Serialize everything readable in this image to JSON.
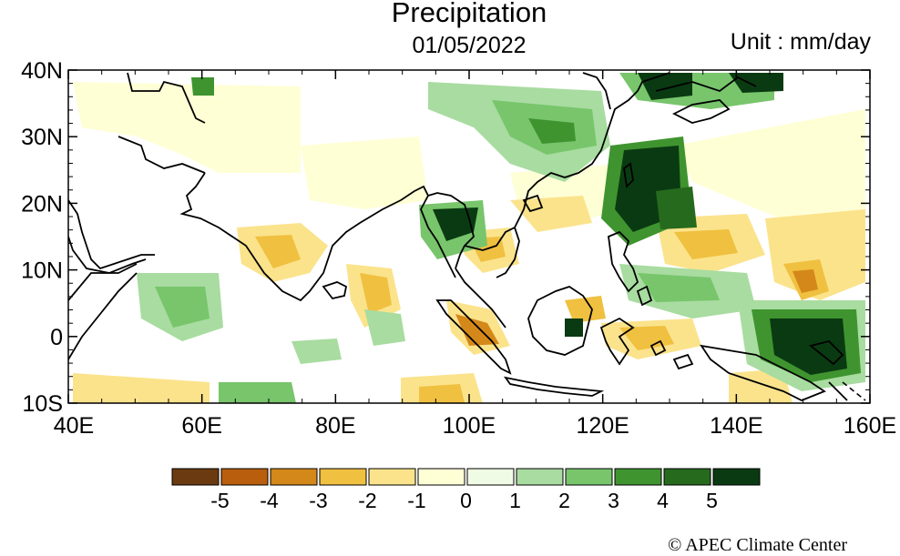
{
  "header": {
    "title": "Precipitation",
    "date": "01/05/2022",
    "unit": "Unit : mm/day"
  },
  "axes": {
    "y_ticks": [
      {
        "label": "40N",
        "lat": 40
      },
      {
        "label": "30N",
        "lat": 30
      },
      {
        "label": "20N",
        "lat": 20
      },
      {
        "label": "10N",
        "lat": 10
      },
      {
        "label": "0",
        "lat": 0
      },
      {
        "label": "10S",
        "lat": -10
      }
    ],
    "x_ticks": [
      {
        "label": "40E",
        "lon": 40
      },
      {
        "label": "60E",
        "lon": 60
      },
      {
        "label": "80E",
        "lon": 80
      },
      {
        "label": "100E",
        "lon": 100
      },
      {
        "label": "120E",
        "lon": 120
      },
      {
        "label": "140E",
        "lon": 140
      },
      {
        "label": "160E",
        "lon": 160
      }
    ]
  },
  "colorbar": {
    "colors": [
      "#6b3a10",
      "#b85e0c",
      "#d4881a",
      "#f0c040",
      "#fbe38c",
      "#ffffd6",
      "#effbe4",
      "#a8dca0",
      "#78c56c",
      "#3f942f",
      "#266a1e",
      "#0a3a12"
    ],
    "labels": [
      "-5",
      "-4",
      "-3",
      "-2",
      "-1",
      "0",
      "1",
      "2",
      "3",
      "4",
      "5"
    ]
  },
  "footer": {
    "copyright": "© APEC Climate Center"
  }
}
